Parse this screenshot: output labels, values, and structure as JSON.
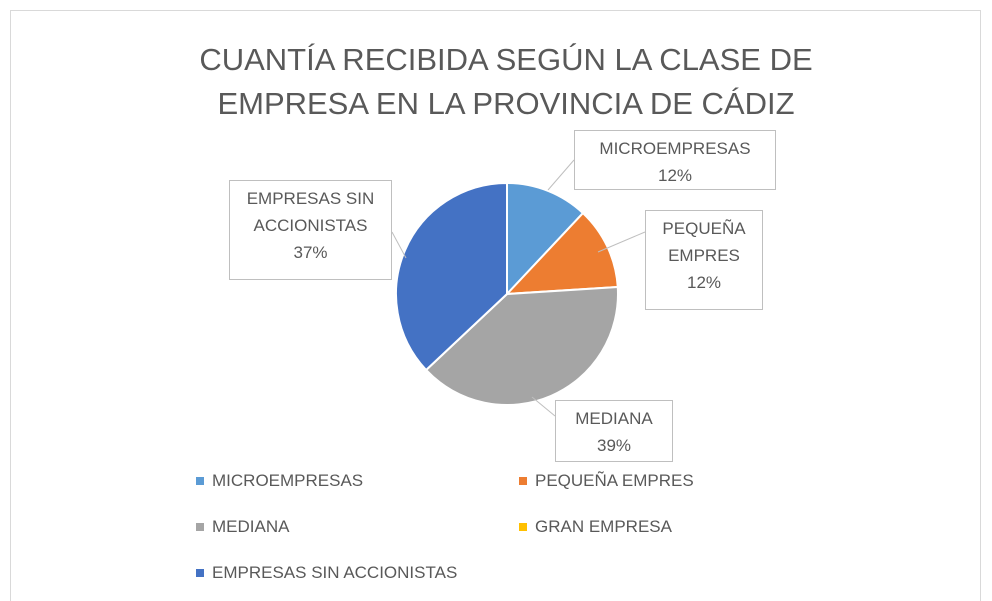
{
  "chart_data": {
    "type": "pie",
    "title": "CUANTÍA RECIBIDA SEGÚN LA CLASE DE EMPRESA EN LA PROVINCIA DE CÁDIZ",
    "categories": [
      "MICROEMPRESAS",
      "PEQUEÑA EMPRES",
      "MEDIANA",
      "GRAN EMPRESA",
      "EMPRESAS SIN ACCIONISTAS"
    ],
    "values": [
      12,
      12,
      39,
      0,
      37
    ],
    "value_labels": [
      "12%",
      "12%",
      "39%",
      null,
      "37%"
    ],
    "colors": [
      "#5b9bd5",
      "#ed7d31",
      "#a5a5a5",
      "#ffc000",
      "#4472c4"
    ],
    "legend": "bottom"
  }
}
